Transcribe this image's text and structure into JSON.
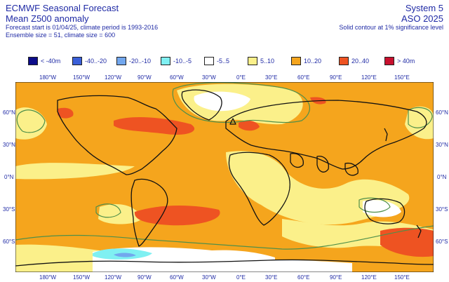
{
  "header": {
    "title_left": "ECMWF Seasonal Forecast",
    "subtitle_left": "Mean Z500 anomaly",
    "info_line1": "Forecast start is 01/04/25, climate period is 1993-2016",
    "info_line2": "Ensemble size = 51, climate size = 600",
    "title_right": "System 5",
    "subtitle_right": "ASO 2025",
    "note_right": "Solid contour at 1% significance level"
  },
  "legend": [
    {
      "label": "< -40m",
      "color": "#0c0c8a"
    },
    {
      "label": "-40..-20",
      "color": "#3a5fd8"
    },
    {
      "label": "-20..-10",
      "color": "#72a7ee"
    },
    {
      "label": "-10..-5",
      "color": "#7ff0f2"
    },
    {
      "label": "-5..5",
      "color": "#ffffff"
    },
    {
      "label": "5..10",
      "color": "#fbf08a"
    },
    {
      "label": "10..20",
      "color": "#f5a51d"
    },
    {
      "label": "20..40",
      "color": "#ee5322"
    },
    {
      "label": "> 40m",
      "color": "#c8102e"
    }
  ],
  "axes": {
    "x_ticks": [
      "180°W",
      "150°W",
      "120°W",
      "90°W",
      "60°W",
      "30°W",
      "0°E",
      "30°E",
      "60°E",
      "90°E",
      "120°E",
      "150°E"
    ],
    "y_ticks": [
      "60°N",
      "30°N",
      "0°N",
      "30°S",
      "60°S"
    ]
  },
  "colors": {
    "background_field": "#f5a51d",
    "coastline": "#111111",
    "significance_contour": "#4f8f4a"
  }
}
